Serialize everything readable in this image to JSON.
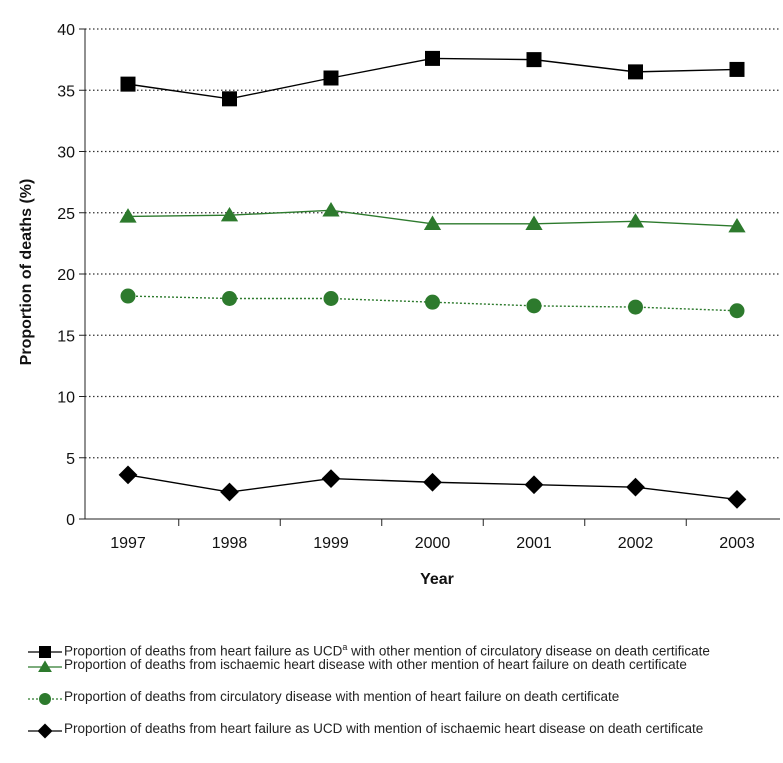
{
  "chart_data": {
    "type": "line",
    "xlabel": "Year",
    "ylabel": "Proportion of deaths (%)",
    "categories": [
      "1997",
      "1998",
      "1999",
      "2000",
      "2001",
      "2002",
      "2003"
    ],
    "ylim": [
      0,
      40
    ],
    "yticks": [
      0,
      5,
      10,
      15,
      20,
      25,
      30,
      35,
      40
    ],
    "grid": "horizontal dotted",
    "legend_position": "bottom",
    "series": [
      {
        "name": "Proportion of deaths from heart failure as UCD",
        "name_superscript": "a",
        "name_suffix": " with other mention of circulatory disease on death certificate",
        "marker": "square",
        "line": "solid",
        "color": "#000000",
        "values": [
          35.5,
          34.3,
          36.0,
          37.6,
          37.5,
          36.5,
          36.7
        ]
      },
      {
        "name": "Proportion of deaths from ischaemic heart disease with other mention of heart failure on death certificate",
        "marker": "triangle",
        "line": "solid",
        "color": "#2d7a2d",
        "values": [
          24.7,
          24.8,
          25.2,
          24.1,
          24.1,
          24.3,
          23.9
        ]
      },
      {
        "name": "Proportion of deaths from circulatory disease with mention of heart failure on death certificate",
        "marker": "circle",
        "line": "dotted",
        "color": "#2d7a2d",
        "values": [
          18.2,
          18.0,
          18.0,
          17.7,
          17.4,
          17.3,
          17.0
        ]
      },
      {
        "name": "Proportion of deaths from heart failure as UCD with mention of ischaemic heart disease on death certificate",
        "marker": "diamond",
        "line": "solid",
        "color": "#000000",
        "values": [
          3.6,
          2.2,
          3.3,
          3.0,
          2.8,
          2.6,
          1.6
        ]
      }
    ]
  }
}
